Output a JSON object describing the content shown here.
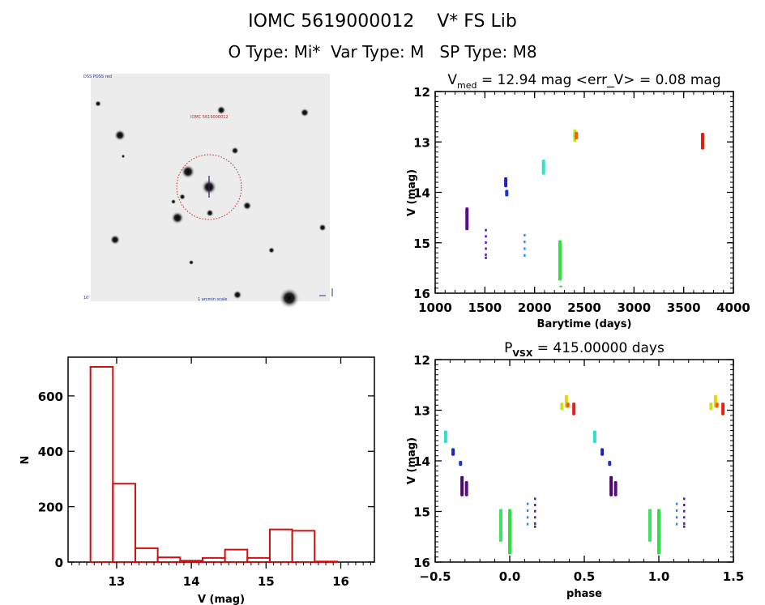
{
  "header": {
    "line1": "IOMC 5619000012    V* FS Lib",
    "line2": "O Type: Mi*  Var Type: M   SP Type: M8"
  },
  "sky_image": {
    "label_top_left": "DSS POSS red",
    "label_target": "IOMC 5619000012",
    "label_bottom_left": "10'",
    "label_bottom_center": "1 arcmin scale",
    "compass_labels": [
      "N",
      "E"
    ],
    "circle_color": "#d02020",
    "crosshair_color": "#3a1a6a"
  },
  "chart_data": [
    {
      "id": "light-curve",
      "type": "scatter",
      "title_main": "V",
      "title_sub": "med",
      "title_rest": " = 12.94 mag <err_V> = 0.08 mag",
      "xlabel": "Barytime (days)",
      "ylabel": "V (mag)",
      "xlim": [
        1000,
        4000
      ],
      "ylim": [
        16,
        12
      ],
      "y_inverted": true,
      "xticks": [
        1000,
        1500,
        2000,
        2500,
        3000,
        3500,
        4000
      ],
      "yticks": [
        12,
        13,
        14,
        15,
        16
      ],
      "grid": false,
      "groups": [
        {
          "x": 1320,
          "ymin": 14.3,
          "ymax": 14.75,
          "color": "#5a0a8a"
        },
        {
          "x": 1510,
          "ymin": 14.75,
          "ymax": 15.3,
          "color": "#4a1aa0",
          "sparse": true
        },
        {
          "x": 1710,
          "ymin": 13.7,
          "ymax": 13.9,
          "color": "#2020c8"
        },
        {
          "x": 1720,
          "ymin": 13.95,
          "ymax": 14.08,
          "color": "#2030d0"
        },
        {
          "x": 1900,
          "ymin": 14.85,
          "ymax": 15.25,
          "color": "#2a8ad8",
          "sparse": true
        },
        {
          "x": 2090,
          "ymin": 13.35,
          "ymax": 13.65,
          "color": "#30e0c8"
        },
        {
          "x": 2255,
          "ymin": 14.95,
          "ymax": 15.75,
          "color": "#30e040"
        },
        {
          "x": 2265,
          "ymin": 15.85,
          "ymax": 15.87,
          "color": "#30e040"
        },
        {
          "x": 2405,
          "ymin": 12.75,
          "ymax": 13.0,
          "color": "#c8e020"
        },
        {
          "x": 2420,
          "ymin": 12.8,
          "ymax": 12.95,
          "color": "#f06010"
        },
        {
          "x": 3690,
          "ymin": 12.82,
          "ymax": 13.15,
          "color": "#d82010"
        }
      ]
    },
    {
      "id": "phase-curve",
      "type": "scatter",
      "title_main": "P",
      "title_sub": "VSX",
      "title_rest": " = 415.00000 days",
      "xlabel": "phase",
      "ylabel": "V (mag)",
      "xlim": [
        -0.5,
        1.5
      ],
      "ylim": [
        16,
        12
      ],
      "y_inverted": true,
      "xticks": [
        -0.5,
        0.0,
        0.5,
        1.0,
        1.5
      ],
      "xtick_labels": [
        "−0.5",
        "0.0",
        "0.5",
        "1.0",
        "1.5"
      ],
      "yticks": [
        12,
        13,
        14,
        15,
        16
      ],
      "period_days": 415.0,
      "grid": false,
      "groups": [
        {
          "x": -0.43,
          "ymin": 13.4,
          "ymax": 13.65,
          "color": "#30e0c8"
        },
        {
          "x": -0.38,
          "ymin": 13.75,
          "ymax": 13.9,
          "color": "#2020c8"
        },
        {
          "x": -0.33,
          "ymin": 14.0,
          "ymax": 14.1,
          "color": "#2030d0"
        },
        {
          "x": -0.32,
          "ymin": 14.3,
          "ymax": 14.7,
          "color": "#4a0a6a"
        },
        {
          "x": -0.29,
          "ymin": 14.4,
          "ymax": 14.7,
          "color": "#5a0a8a"
        },
        {
          "x": -0.06,
          "ymin": 14.95,
          "ymax": 15.6,
          "color": "#40e060"
        },
        {
          "x": 0.0,
          "ymin": 14.95,
          "ymax": 15.85,
          "color": "#30e040"
        },
        {
          "x": 0.12,
          "ymin": 14.85,
          "ymax": 15.25,
          "color": "#2a8ad8",
          "sparse": true
        },
        {
          "x": 0.17,
          "ymin": 14.75,
          "ymax": 15.3,
          "color": "#4a1aa0",
          "sparse": true
        },
        {
          "x": 0.35,
          "ymin": 12.85,
          "ymax": 13.0,
          "color": "#c8e020"
        },
        {
          "x": 0.38,
          "ymin": 12.7,
          "ymax": 12.95,
          "color": "#f0d010"
        },
        {
          "x": 0.39,
          "ymin": 12.85,
          "ymax": 12.95,
          "color": "#f06010"
        },
        {
          "x": 0.43,
          "ymin": 12.85,
          "ymax": 13.1,
          "color": "#e82010"
        },
        {
          "x": 0.57,
          "ymin": 13.4,
          "ymax": 13.65,
          "color": "#30e0c8"
        },
        {
          "x": 0.62,
          "ymin": 13.75,
          "ymax": 13.9,
          "color": "#2020c8"
        },
        {
          "x": 0.67,
          "ymin": 14.0,
          "ymax": 14.1,
          "color": "#2030d0"
        },
        {
          "x": 0.68,
          "ymin": 14.3,
          "ymax": 14.7,
          "color": "#4a0a6a"
        },
        {
          "x": 0.71,
          "ymin": 14.4,
          "ymax": 14.7,
          "color": "#5a0a8a"
        },
        {
          "x": 0.94,
          "ymin": 14.95,
          "ymax": 15.6,
          "color": "#40e060"
        },
        {
          "x": 1.0,
          "ymin": 14.95,
          "ymax": 15.85,
          "color": "#30e040"
        },
        {
          "x": 1.12,
          "ymin": 14.85,
          "ymax": 15.25,
          "color": "#2a8ad8",
          "sparse": true
        },
        {
          "x": 1.17,
          "ymin": 14.75,
          "ymax": 15.3,
          "color": "#4a1aa0",
          "sparse": true
        },
        {
          "x": 1.35,
          "ymin": 12.85,
          "ymax": 13.0,
          "color": "#c8e020"
        },
        {
          "x": 1.38,
          "ymin": 12.7,
          "ymax": 12.95,
          "color": "#f0d010"
        },
        {
          "x": 1.39,
          "ymin": 12.85,
          "ymax": 12.95,
          "color": "#f06010"
        },
        {
          "x": 1.43,
          "ymin": 12.85,
          "ymax": 13.1,
          "color": "#e82010"
        }
      ]
    },
    {
      "id": "histogram",
      "type": "bar",
      "title": "",
      "xlabel": "V (mag)",
      "ylabel": "N",
      "xlim": [
        12.35,
        16.45
      ],
      "ylim": [
        0,
        740
      ],
      "xticks": [
        13,
        14,
        15,
        16
      ],
      "yticks": [
        0,
        200,
        400,
        600
      ],
      "bar_color": "#cc1111",
      "bin_edges": [
        12.65,
        12.95,
        13.25,
        13.55,
        13.85,
        14.15,
        14.45,
        14.75,
        15.05,
        15.35,
        15.65,
        15.95
      ],
      "values": [
        705,
        283,
        50,
        17,
        5,
        15,
        45,
        15,
        118,
        113,
        2
      ],
      "grid": false
    }
  ]
}
